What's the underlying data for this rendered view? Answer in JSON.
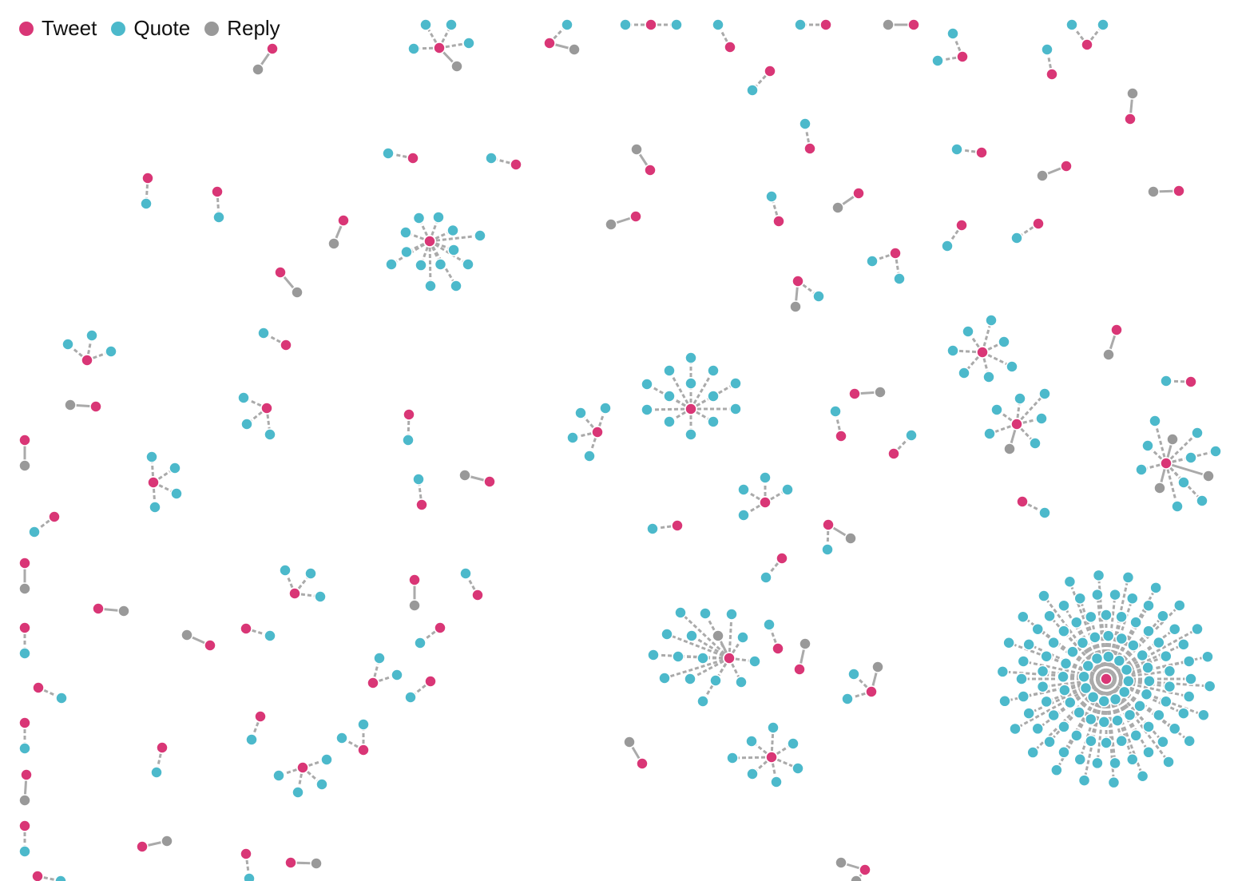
{
  "legend": [
    {
      "key": "tweet",
      "label": "Tweet",
      "color": "#d93676"
    },
    {
      "key": "quote",
      "label": "Quote",
      "color": "#4cb9cb"
    },
    {
      "key": "reply",
      "label": "Reply",
      "color": "#999999"
    }
  ],
  "colors": {
    "link": "#aaaaaa",
    "node_stroke": "#ffffff"
  }
}
